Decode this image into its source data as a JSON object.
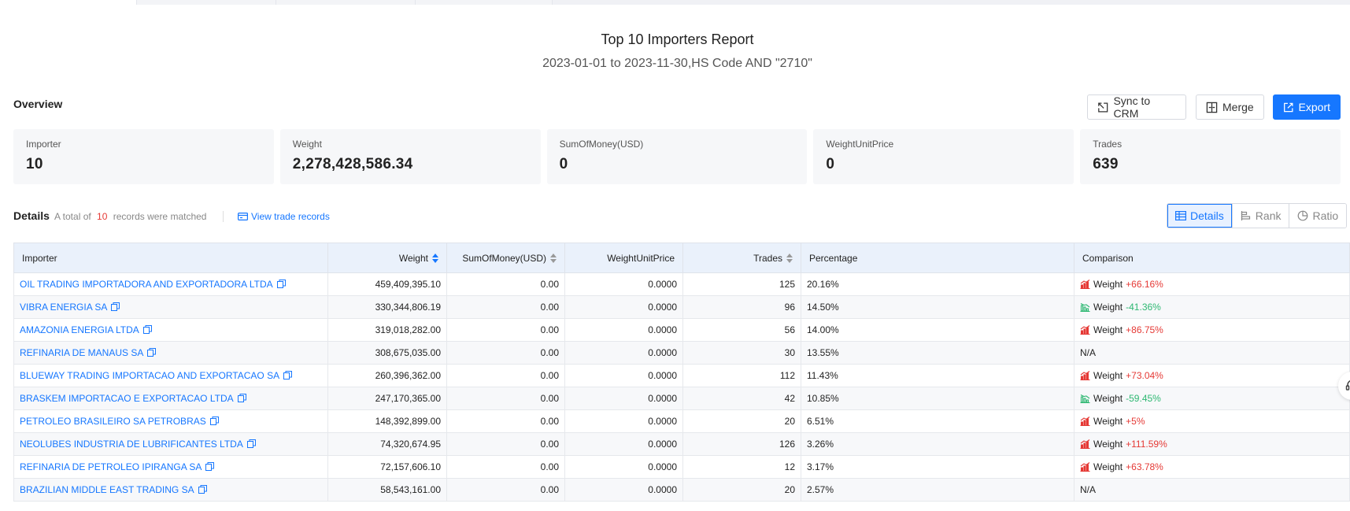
{
  "report": {
    "title": "Top 10 Importers Report",
    "subtitle": "2023-01-01 to 2023-11-30,HS Code AND \"2710\""
  },
  "overview": {
    "label": "Overview",
    "buttons": {
      "sync": "Sync to CRM",
      "merge": "Merge",
      "export": "Export"
    },
    "cards": [
      {
        "label": "Importer",
        "value": "10"
      },
      {
        "label": "Weight",
        "value": "2,278,428,586.34"
      },
      {
        "label": "SumOfMoney(USD)",
        "value": "0"
      },
      {
        "label": "WeightUnitPrice",
        "value": "0"
      },
      {
        "label": "Trades",
        "value": "639"
      }
    ]
  },
  "details": {
    "title": "Details",
    "count_prefix": "A total of",
    "count": "10",
    "count_suffix": "records were matched",
    "view_link": "View trade records",
    "views": {
      "details": "Details",
      "rank": "Rank",
      "ratio": "Ratio"
    }
  },
  "table": {
    "headers": {
      "importer": "Importer",
      "weight": "Weight",
      "money": "SumOfMoney(USD)",
      "unit_price": "WeightUnitPrice",
      "trades": "Trades",
      "percentage": "Percentage",
      "comparison": "Comparison"
    },
    "rows": [
      {
        "importer": "OIL TRADING IMPORTADORA AND EXPORTADORA LTDA",
        "weight": "459,409,395.10",
        "money": "0.00",
        "unit_price": "0.0000",
        "trades": "125",
        "percentage": "20.16%",
        "cmp_label": "Weight",
        "cmp_value": "+66.16%",
        "trend": "up"
      },
      {
        "importer": "VIBRA ENERGIA SA",
        "weight": "330,344,806.19",
        "money": "0.00",
        "unit_price": "0.0000",
        "trades": "96",
        "percentage": "14.50%",
        "cmp_label": "Weight",
        "cmp_value": "-41.36%",
        "trend": "down"
      },
      {
        "importer": "AMAZONIA ENERGIA LTDA",
        "weight": "319,018,282.00",
        "money": "0.00",
        "unit_price": "0.0000",
        "trades": "56",
        "percentage": "14.00%",
        "cmp_label": "Weight",
        "cmp_value": "+86.75%",
        "trend": "up"
      },
      {
        "importer": "REFINARIA DE MANAUS SA",
        "weight": "308,675,035.00",
        "money": "0.00",
        "unit_price": "0.0000",
        "trades": "30",
        "percentage": "13.55%",
        "cmp_label": "N/A",
        "cmp_value": "",
        "trend": "none"
      },
      {
        "importer": "BLUEWAY TRADING IMPORTACAO AND EXPORTACAO SA",
        "weight": "260,396,362.00",
        "money": "0.00",
        "unit_price": "0.0000",
        "trades": "112",
        "percentage": "11.43%",
        "cmp_label": "Weight",
        "cmp_value": "+73.04%",
        "trend": "up"
      },
      {
        "importer": "BRASKEM IMPORTACAO E EXPORTACAO LTDA",
        "weight": "247,170,365.00",
        "money": "0.00",
        "unit_price": "0.0000",
        "trades": "42",
        "percentage": "10.85%",
        "cmp_label": "Weight",
        "cmp_value": "-59.45%",
        "trend": "down"
      },
      {
        "importer": "PETROLEO BRASILEIRO SA PETROBRAS",
        "weight": "148,392,899.00",
        "money": "0.00",
        "unit_price": "0.0000",
        "trades": "20",
        "percentage": "6.51%",
        "cmp_label": "Weight",
        "cmp_value": "+5%",
        "trend": "up"
      },
      {
        "importer": "NEOLUBES INDUSTRIA DE LUBRIFICANTES LTDA",
        "weight": "74,320,674.95",
        "money": "0.00",
        "unit_price": "0.0000",
        "trades": "126",
        "percentage": "3.26%",
        "cmp_label": "Weight",
        "cmp_value": "+111.59%",
        "trend": "up"
      },
      {
        "importer": "REFINARIA DE PETROLEO IPIRANGA SA",
        "weight": "72,157,606.10",
        "money": "0.00",
        "unit_price": "0.0000",
        "trades": "12",
        "percentage": "3.17%",
        "cmp_label": "Weight",
        "cmp_value": "+63.78%",
        "trend": "up"
      },
      {
        "importer": "BRAZILIAN MIDDLE EAST TRADING SA",
        "weight": "58,543,161.00",
        "money": "0.00",
        "unit_price": "0.0000",
        "trades": "20",
        "percentage": "2.57%",
        "cmp_label": "N/A",
        "cmp_value": "",
        "trend": "none"
      }
    ]
  },
  "colors": {
    "accent": "#1677ff",
    "up": "#e53935",
    "down": "#2eb872"
  },
  "icons": {
    "copy": "copy-icon",
    "trend_up": "chart-up-icon",
    "trend_down": "chart-down-icon",
    "support": "headset-icon"
  }
}
